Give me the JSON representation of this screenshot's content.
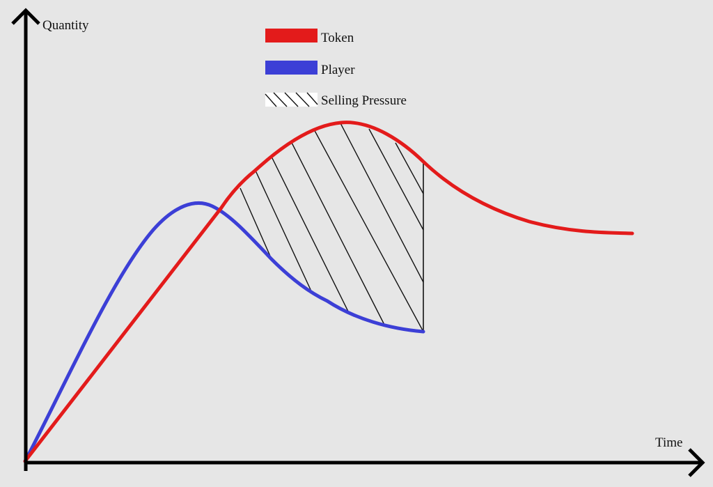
{
  "diagram": {
    "axes": {
      "y_label": "Quantity",
      "x_label": "Time"
    },
    "legend": {
      "placement": "top-center",
      "items": [
        {
          "label": "Token",
          "swatch": "solid",
          "color": "#e31b1b"
        },
        {
          "label": "Player",
          "swatch": "solid",
          "color": "#3c3fd6"
        },
        {
          "label": "Selling Pressure",
          "swatch": "hatch",
          "color": "#111111"
        }
      ]
    },
    "series": [
      {
        "key": "token",
        "color": "#e31b1b"
      },
      {
        "key": "player",
        "color": "#3c3fd6"
      }
    ],
    "annotation": {
      "hatched_region": "Selling Pressure",
      "hatch_color": "#111111"
    },
    "colors": {
      "background": "#e6e6e6",
      "axis": "#000000"
    }
  }
}
